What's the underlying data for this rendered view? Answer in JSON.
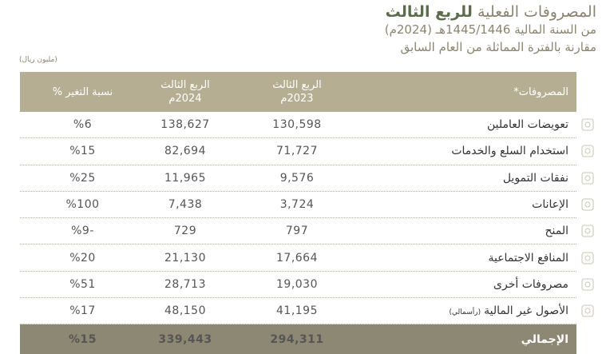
{
  "header": {
    "title_regular": "المصروفات الفعلية",
    "title_bold": "للربع الثالث",
    "subtitle_1": "من السنة المالية 1445/1446هـ (2024م)",
    "subtitle_2": "مقارنة بالفترة المماثلة من العام السابق",
    "unit": "(مليون ريال)"
  },
  "table": {
    "columns": [
      [
        "المصروفات*"
      ],
      [
        "الربع الثالث",
        "2023م"
      ],
      [
        "الربع الثالث",
        "2024م"
      ],
      [
        "نسبة التغير %"
      ]
    ],
    "rows": [
      {
        "label": "تعويضات العاملين",
        "q3_2023": "130,598",
        "q3_2024": "138,627",
        "change": "%6"
      },
      {
        "label": "استخدام السلع والخدمات",
        "q3_2023": "71,727",
        "q3_2024": "82,694",
        "change": "%15"
      },
      {
        "label": "نفقات التمويل",
        "q3_2023": "9,576",
        "q3_2024": "11,965",
        "change": "%25"
      },
      {
        "label": "الإعانات",
        "q3_2023": "3,724",
        "q3_2024": "7,438",
        "change": "%100"
      },
      {
        "label": "المنح",
        "q3_2023": "797",
        "q3_2024": "729",
        "change": "-%9"
      },
      {
        "label": "المنافع الاجتماعية",
        "q3_2023": "17,664",
        "q3_2024": "21,130",
        "change": "%20"
      },
      {
        "label": "مصروفات أخرى",
        "q3_2023": "19,030",
        "q3_2024": "28,713",
        "change": "%51"
      },
      {
        "label": "الأصول غير المالية",
        "note": "(رأسمالي)",
        "q3_2023": "41,195",
        "q3_2024": "48,150",
        "change": "%17"
      }
    ],
    "total": {
      "label": "الإجمالي",
      "q3_2023": "294,311",
      "q3_2024": "339,443",
      "change": "%15"
    }
  }
}
